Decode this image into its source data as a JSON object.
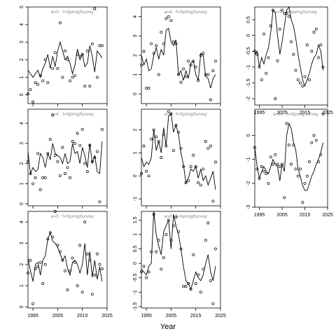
{
  "chart_data": {
    "type": "scatter",
    "xlabel": "Year",
    "xlim": [
      1993,
      2025
    ],
    "xticks": [
      1995,
      2005,
      2015,
      2025
    ],
    "panels": [
      {
        "strip": "a=3 : f=SpringSurvey",
        "ylim": [
          -0.5,
          5
        ],
        "yticks": [
          0,
          1,
          2,
          3,
          4,
          5
        ],
        "line_x": [
          1993,
          1994,
          1995,
          1996,
          1997,
          1998,
          1999,
          2000,
          2001,
          2002,
          2003,
          2004,
          2005,
          2006,
          2007,
          2008,
          2009,
          2010,
          2011,
          2012,
          2013,
          2014,
          2015,
          2016,
          2017,
          2018,
          2019,
          2020,
          2021,
          2022,
          2023
        ],
        "line_y": [
          1.4,
          1.2,
          1.0,
          1.2,
          1.4,
          1.0,
          1.5,
          1.8,
          2.3,
          1.5,
          2.2,
          1.6,
          2.5,
          3.0,
          2.5,
          2.0,
          2.2,
          1.8,
          1.2,
          1.7,
          2.6,
          2.0,
          2.3,
          1.6,
          1.8,
          2.8,
          2.2,
          1.3,
          2.5,
          2.3,
          2.1
        ],
        "points_x": [
          1993,
          1994,
          1995,
          1996,
          1997,
          1998,
          1999,
          2000,
          2001,
          2003,
          2004,
          2005,
          2006,
          2007,
          2008,
          2009,
          2010,
          2011,
          2012,
          2013,
          2014,
          2015,
          2016,
          2017,
          2018,
          2019,
          2020,
          2021,
          2022,
          2023
        ],
        "points_y": [
          0.05,
          0.3,
          -0.4,
          0.7,
          0.6,
          1.1,
          0.8,
          2.0,
          0.7,
          1.5,
          2.4,
          1.5,
          4.1,
          1.0,
          2.5,
          2.0,
          0.8,
          1.0,
          1.1,
          2.3,
          2.2,
          2.3,
          0.5,
          2.5,
          0.5,
          2.9,
          4.9,
          1.0,
          2.8,
          2.8
        ]
      },
      {
        "strip": "a=4 : f=SpringSurvey",
        "ylim": [
          -0.5,
          4.5
        ],
        "yticks": [
          0,
          1,
          2,
          3,
          4
        ],
        "line_x": [
          1993,
          1994,
          1995,
          1996,
          1997,
          1998,
          1999,
          2000,
          2001,
          2002,
          2003,
          2004,
          2005,
          2006,
          2007,
          2008,
          2009,
          2010,
          2011,
          2012,
          2013,
          2014,
          2015,
          2016,
          2017,
          2018,
          2019,
          2020,
          2021,
          2022,
          2023
        ],
        "line_y": [
          2.0,
          1.5,
          1.8,
          1.2,
          1.3,
          2.0,
          2.4,
          1.8,
          2.3,
          2.0,
          3.3,
          3.4,
          2.7,
          2.5,
          2.8,
          1.0,
          1.2,
          0.7,
          1.2,
          0.8,
          1.6,
          1.7,
          1.0,
          0.7,
          2.1,
          2.0,
          0.9,
          0.8,
          0.3,
          0.8,
          1.0
        ],
        "points_x": [
          1993,
          1994,
          1995,
          1996,
          1997,
          1998,
          1999,
          2000,
          2001,
          2002,
          2003,
          2004,
          2005,
          2006,
          2007,
          2008,
          2009,
          2010,
          2011,
          2012,
          2013,
          2014,
          2015,
          2016,
          2017,
          2018,
          2019,
          2020,
          2021,
          2022,
          2023
        ],
        "points_y": [
          1.5,
          2.2,
          0.3,
          0.3,
          2.6,
          2.1,
          2.5,
          1.0,
          3.2,
          2.6,
          3.9,
          4.0,
          3.8,
          2.7,
          2.6,
          1.0,
          0.6,
          1.3,
          0.9,
          1.7,
          1.5,
          1.7,
          1.4,
          0.7,
          2.0,
          2.1,
          1.0,
          1.0,
          -0.3,
          1.2,
          1.7
        ]
      },
      {
        "strip": "a=9 : f=SpringSurvey",
        "ylim": [
          -2.2,
          0.9
        ],
        "yticks": [
          -2.0,
          -1.5,
          -1.0,
          -0.5,
          0.0,
          0.5
        ],
        "line_x": [
          1993,
          1994,
          1995,
          1996,
          1997,
          1998,
          1999,
          2000,
          2001,
          2002,
          2003,
          2004,
          2005,
          2006,
          2007,
          2008,
          2009,
          2010,
          2011,
          2012,
          2013,
          2014,
          2015,
          2016,
          2017,
          2018,
          2019,
          2020,
          2021,
          2022,
          2023
        ],
        "line_y": [
          -0.6,
          -0.5,
          -1.0,
          -0.7,
          -0.9,
          -0.6,
          -0.4,
          0.1,
          0.8,
          0.7,
          0.0,
          -0.6,
          -0.2,
          0.3,
          0.8,
          0.9,
          0.5,
          0.3,
          -0.1,
          -0.6,
          -1.0,
          -1.4,
          -1.6,
          -1.4,
          -1.2,
          -0.9,
          -0.7,
          -0.6,
          -0.3,
          -0.5,
          -1.1
        ],
        "points_x": [
          1993,
          1994,
          1995,
          1996,
          1997,
          1998,
          1999,
          2000,
          2001,
          2002,
          2003,
          2004,
          2005,
          2006,
          2007,
          2008,
          2009,
          2010,
          2011,
          2012,
          2013,
          2014,
          2015,
          2016,
          2017,
          2018,
          2019,
          2020,
          2021,
          2022,
          2023
        ],
        "points_y": [
          -0.5,
          -0.6,
          -1.0,
          -1.4,
          0.05,
          -1.2,
          -0.7,
          0.3,
          0.8,
          -2.0,
          -0.8,
          0.2,
          0.8,
          0.7,
          0.7,
          0.6,
          -0.2,
          -0.6,
          -1.1,
          -1.4,
          -1.5,
          -1.6,
          -1.3,
          -0.3,
          -1.4,
          -0.5,
          0.1,
          0.2,
          -0.7,
          -0.3,
          -1.0
        ]
      },
      {
        "strip": "a=4 : f=SpringSurvey",
        "ylim": [
          -0.1,
          4.7
        ],
        "yticks": [
          0,
          1,
          2,
          3,
          4
        ],
        "line_x": [
          1993,
          1994,
          1995,
          1996,
          1997,
          1998,
          1999,
          2000,
          2001,
          2002,
          2003,
          2004,
          2005,
          2006,
          2007,
          2008,
          2009,
          2010,
          2011,
          2012,
          2013,
          2014,
          2015,
          2016,
          2017,
          2018,
          2019,
          2020,
          2021,
          2022,
          2023
        ],
        "line_y": [
          2.6,
          1.5,
          1.8,
          1.6,
          1.7,
          2.5,
          2.3,
          1.8,
          2.5,
          2.2,
          3.0,
          2.5,
          2.4,
          2.3,
          2.0,
          2.5,
          2.0,
          2.1,
          3.0,
          2.5,
          2.6,
          2.0,
          2.8,
          2.4,
          1.8,
          3.0,
          2.0,
          2.4,
          1.6,
          1.5,
          3.1
        ],
        "points_x": [
          1993,
          1994,
          1995,
          1996,
          1997,
          1998,
          1999,
          2000,
          2001,
          2002,
          2003,
          2004,
          2005,
          2006,
          2007,
          2008,
          2009,
          2010,
          2011,
          2012,
          2013,
          2014,
          2015,
          2016,
          2017,
          2018,
          2019,
          2020,
          2021,
          2022,
          2023
        ],
        "points_y": [
          2.1,
          1.5,
          1.0,
          1.3,
          2.5,
          0.7,
          1.3,
          1.3,
          2.5,
          3.2,
          4.4,
          2.4,
          2.1,
          1.4,
          2.8,
          1.5,
          1.8,
          1.3,
          3.1,
          3.0,
          3.5,
          2.9,
          3.7,
          2.0,
          1.6,
          2.9,
          2.1,
          2.3,
          2.6,
          0.1,
          3.7
        ]
      },
      {
        "strip": "a=7 : f=SpringSurvey",
        "ylim": [
          -1.3,
          2.9
        ],
        "yticks": [
          -1,
          0,
          1,
          2
        ],
        "line_x": [
          1993,
          1994,
          1995,
          1996,
          1997,
          1998,
          1999,
          2000,
          2001,
          2002,
          2003,
          2004,
          2005,
          2006,
          2007,
          2008,
          2009,
          2010,
          2011,
          2012,
          2013,
          2014,
          2015,
          2016,
          2017,
          2018,
          2019,
          2020,
          2021,
          2022,
          2023
        ],
        "line_y": [
          0.8,
          0.4,
          0.6,
          0.5,
          0.8,
          2.0,
          1.1,
          1.5,
          1.0,
          2.1,
          1.3,
          2.6,
          2.7,
          1.9,
          2.2,
          1.8,
          1.0,
          0.5,
          -0.3,
          -0.1,
          0.3,
          0.2,
          0.4,
          -0.1,
          0.3,
          -0.2,
          0.0,
          -0.4,
          -0.1,
          0.2,
          -0.6
        ],
        "points_x": [
          1993,
          1994,
          1995,
          1996,
          1997,
          1998,
          1999,
          2000,
          2001,
          2002,
          2003,
          2004,
          2005,
          2006,
          2007,
          2008,
          2009,
          2010,
          2011,
          2012,
          2013,
          2014,
          2015,
          2016,
          2017,
          2018,
          2019,
          2020,
          2021,
          2022,
          2023
        ],
        "points_y": [
          0.1,
          1.3,
          0.2,
          0.0,
          1.6,
          2.0,
          1.7,
          1.5,
          0.8,
          1.8,
          1.3,
          2.8,
          2.7,
          1.1,
          2.2,
          1.9,
          1.2,
          0.4,
          -0.3,
          -0.2,
          0.4,
          0.9,
          0.4,
          -0.3,
          -0.4,
          0.3,
          1.5,
          1.2,
          1.3,
          -1.1,
          0.6
        ]
      },
      {
        "strip": "a=10 : f=SpringSurvey",
        "ylim": [
          -3.0,
          1.1
        ],
        "yticks": [
          -3,
          -2,
          -1,
          0
        ],
        "line_x": [
          1993,
          1994,
          1995,
          1996,
          1997,
          1998,
          1999,
          2000,
          2001,
          2002,
          2003,
          2004,
          2005,
          2006,
          2007,
          2008,
          2009,
          2010,
          2011,
          2012,
          2013,
          2014,
          2015,
          2016,
          2017,
          2018,
          2019,
          2020,
          2021,
          2022,
          2023
        ],
        "line_y": [
          -0.5,
          -1.3,
          -1.8,
          -1.5,
          -1.3,
          -1.5,
          -1.6,
          -1.3,
          -1.0,
          -1.2,
          -1.3,
          -1.9,
          -1.2,
          -1.5,
          0.0,
          0.5,
          0.3,
          -0.3,
          -0.6,
          -1.4,
          -1.7,
          -2.1,
          -2.3,
          -2.3,
          -2.0,
          -1.7,
          -1.5,
          -1.2,
          -1.0,
          -0.7,
          -0.3
        ],
        "points_x": [
          1993,
          1994,
          1995,
          1996,
          1997,
          1998,
          1999,
          2000,
          2001,
          2002,
          2003,
          2004,
          2005,
          2006,
          2007,
          2008,
          2009,
          2010,
          2011,
          2012,
          2013,
          2014,
          2015,
          2016,
          2017,
          2018,
          2019,
          2020,
          2021,
          2022,
          2023
        ],
        "points_y": [
          -0.5,
          -1.4,
          -1.8,
          -1.3,
          -1.5,
          -1.6,
          -2.0,
          -0.9,
          -1.2,
          -0.8,
          -1.2,
          -1.3,
          -1.2,
          -2.6,
          0.5,
          -0.4,
          -1.2,
          -0.4,
          -1.4,
          -1.7,
          -1.4,
          -2.8,
          -2.0,
          -1.7,
          -1.1,
          -0.3,
          0.0,
          -0.2,
          -1.1,
          -0.8,
          0.9
        ]
      },
      {
        "strip": "a=5 : f=SpringSurvey",
        "ylim": [
          -0.05,
          4.5
        ],
        "yticks": [
          0,
          1,
          2,
          3,
          4
        ],
        "line_x": [
          1993,
          1994,
          1995,
          1996,
          1997,
          1998,
          1999,
          2000,
          2001,
          2002,
          2003,
          2004,
          2005,
          2006,
          2007,
          2008,
          2009,
          2010,
          2011,
          2012,
          2013,
          2014,
          2015,
          2016,
          2017,
          2018,
          2019,
          2020,
          2021,
          2022,
          2023
        ],
        "line_y": [
          2.3,
          1.7,
          1.2,
          2.0,
          2.1,
          1.5,
          2.2,
          2.4,
          3.2,
          3.5,
          3.1,
          3.0,
          2.8,
          2.5,
          2.2,
          2.4,
          1.8,
          1.5,
          2.1,
          2.2,
          2.0,
          1.6,
          2.0,
          3.0,
          1.5,
          2.6,
          1.4,
          2.2,
          1.3,
          1.9,
          1.2
        ],
        "points_x": [
          1993,
          1994,
          1995,
          1996,
          1997,
          1998,
          1999,
          2000,
          2001,
          2002,
          2003,
          2004,
          2005,
          2006,
          2007,
          2008,
          2009,
          2010,
          2011,
          2012,
          2013,
          2014,
          2015,
          2016,
          2017,
          2018,
          2019,
          2020,
          2021,
          2022,
          2023
        ],
        "points_y": [
          1.6,
          2.2,
          0.15,
          1.8,
          1.9,
          2.1,
          1.1,
          2.0,
          3.2,
          3.5,
          3.3,
          4.5,
          2.9,
          2.6,
          2.2,
          1.7,
          0.8,
          1.7,
          2.3,
          2.1,
          1.0,
          2.9,
          0.7,
          4.0,
          2.5,
          2.2,
          0.6,
          1.5,
          2.5,
          2.0,
          1.8
        ]
      },
      {
        "strip": "a=8 : f=SpringSurvey",
        "ylim": [
          -1.55,
          1.8
        ],
        "yticks": [
          -1.5,
          -1.0,
          -0.5,
          0.0,
          0.5,
          1.0,
          1.5
        ],
        "line_x": [
          1993,
          1994,
          1995,
          1996,
          1997,
          1998,
          1999,
          2000,
          2001,
          2002,
          2003,
          2004,
          2005,
          2006,
          2007,
          2008,
          2009,
          2010,
          2011,
          2012,
          2013,
          2014,
          2015,
          2016,
          2017,
          2018,
          2019,
          2020,
          2021,
          2022,
          2023
        ],
        "line_y": [
          -0.2,
          -0.3,
          -0.4,
          -0.1,
          0.0,
          1.8,
          1.0,
          0.6,
          0.3,
          1.1,
          1.3,
          1.5,
          0.5,
          1.7,
          1.3,
          1.0,
          0.5,
          -0.1,
          -0.6,
          -0.7,
          -0.9,
          -0.6,
          -0.3,
          -0.5,
          -0.6,
          -0.4,
          0.0,
          0.3,
          -0.3,
          -0.6,
          -0.1
        ],
        "points_x": [
          1993,
          1994,
          1995,
          1996,
          1997,
          1998,
          1999,
          2000,
          2001,
          2002,
          2003,
          2004,
          2005,
          2006,
          2007,
          2008,
          2009,
          2010,
          2011,
          2012,
          2013,
          2014,
          2015,
          2016,
          2017,
          2018,
          2019,
          2020,
          2021,
          2022,
          2023
        ],
        "points_y": [
          -0.3,
          -0.1,
          -0.5,
          -0.3,
          0.4,
          1.7,
          0.4,
          0.8,
          -0.2,
          0.2,
          1.0,
          1.5,
          0.8,
          1.3,
          1.6,
          1.1,
          0.5,
          -0.8,
          -0.8,
          -0.7,
          -0.9,
          0.3,
          -0.7,
          -0.4,
          -1.0,
          -0.2,
          0.8,
          1.4,
          -0.6,
          -1.4,
          0.5
        ]
      }
    ]
  }
}
